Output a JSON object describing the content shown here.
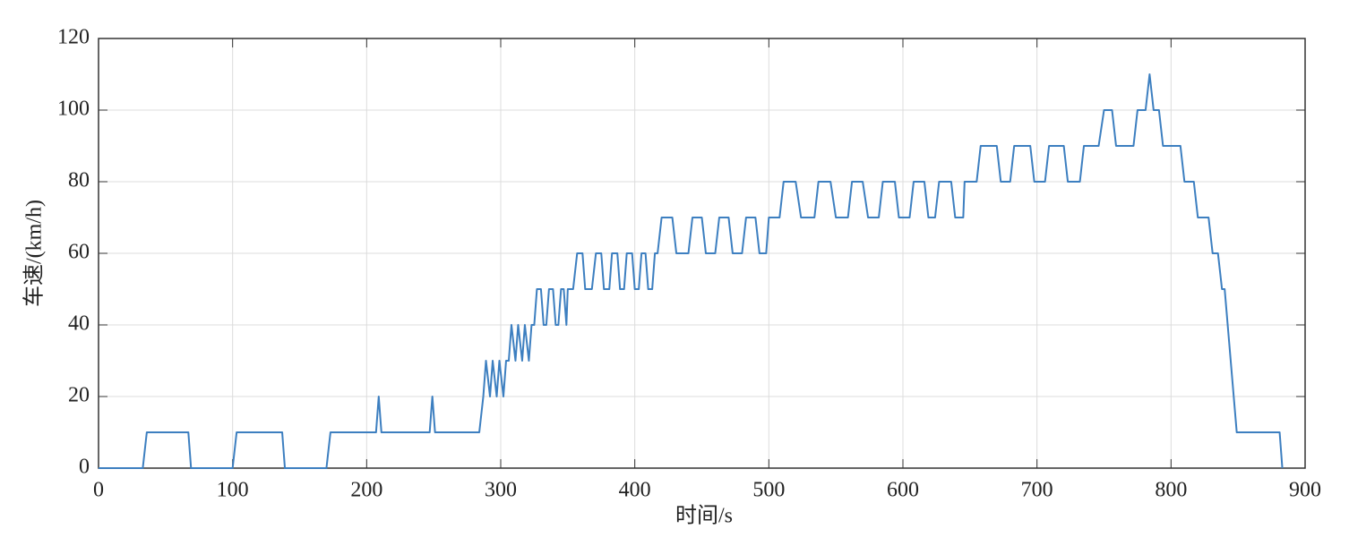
{
  "chart_data": {
    "type": "line",
    "xlabel": "时间/s",
    "ylabel": "车速/(km/h)",
    "x": [
      0,
      33,
      36,
      67,
      69,
      100,
      103,
      137,
      139,
      170,
      173,
      207,
      209,
      211,
      247,
      249,
      251,
      284,
      287,
      289,
      292,
      294,
      297,
      299,
      302,
      304,
      306,
      308,
      311,
      313,
      316,
      318,
      321,
      323,
      325,
      327,
      330,
      332,
      334,
      336,
      339,
      341,
      343,
      345,
      347,
      349,
      350,
      354,
      357,
      361,
      363,
      368,
      371,
      375,
      377,
      381,
      383,
      387,
      389,
      392,
      394,
      398,
      400,
      403,
      405,
      408,
      410,
      413,
      415,
      417,
      420,
      428,
      431,
      440,
      443,
      450,
      453,
      460,
      463,
      470,
      473,
      480,
      483,
      490,
      493,
      498,
      500,
      508,
      511,
      520,
      524,
      534,
      537,
      546,
      550,
      559,
      562,
      570,
      574,
      582,
      585,
      594,
      597,
      605,
      608,
      616,
      619,
      624,
      627,
      636,
      639,
      645,
      646,
      655,
      658,
      670,
      673,
      680,
      683,
      695,
      698,
      706,
      709,
      720,
      723,
      732,
      735,
      746,
      750,
      756,
      759,
      772,
      775,
      781,
      784,
      787,
      791,
      794,
      807,
      810,
      817,
      820,
      828,
      831,
      835,
      838,
      840,
      849,
      881,
      883
    ],
    "series": [
      {
        "color": "#3d7fc0",
        "values": [
          0,
          0,
          10,
          10,
          0,
          0,
          10,
          10,
          0,
          0,
          10,
          10,
          20,
          10,
          10,
          20,
          10,
          10,
          20,
          30,
          20,
          30,
          20,
          30,
          20,
          30,
          30,
          40,
          30,
          40,
          30,
          40,
          30,
          40,
          40,
          50,
          50,
          40,
          40,
          50,
          50,
          40,
          40,
          50,
          50,
          40,
          50,
          50,
          60,
          60,
          50,
          50,
          60,
          60,
          50,
          50,
          60,
          60,
          50,
          50,
          60,
          60,
          50,
          50,
          60,
          60,
          50,
          50,
          60,
          60,
          70,
          70,
          60,
          60,
          70,
          70,
          60,
          60,
          70,
          70,
          60,
          60,
          70,
          70,
          60,
          60,
          70,
          70,
          80,
          80,
          70,
          70,
          80,
          80,
          70,
          70,
          80,
          80,
          70,
          70,
          80,
          80,
          70,
          70,
          80,
          80,
          70,
          70,
          80,
          80,
          70,
          70,
          80,
          80,
          90,
          90,
          80,
          80,
          90,
          90,
          80,
          80,
          90,
          90,
          80,
          80,
          90,
          90,
          100,
          100,
          90,
          90,
          100,
          100,
          110,
          100,
          100,
          90,
          90,
          80,
          80,
          70,
          70,
          60,
          60,
          50,
          50,
          10,
          10,
          0
        ]
      }
    ],
    "xlim": [
      0,
      900
    ],
    "xticks": [
      0,
      100,
      200,
      300,
      400,
      500,
      600,
      700,
      800,
      900
    ],
    "ylim": [
      0,
      120
    ],
    "yticks": [
      0,
      20,
      40,
      60,
      80,
      100,
      120
    ],
    "grid": true
  }
}
